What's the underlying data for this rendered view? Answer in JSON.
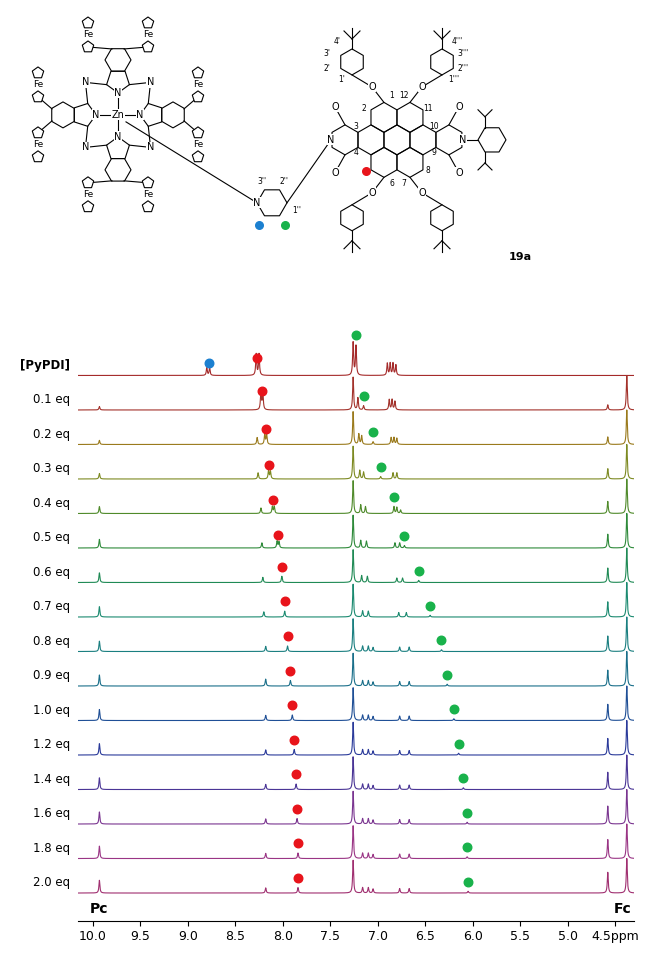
{
  "chart_data": {
    "type": "nmr_stack",
    "xlim": [
      10.15,
      4.3
    ],
    "ylim": [
      -0.8,
      17.5
    ],
    "xticks": [
      10.0,
      9.5,
      9.0,
      8.5,
      8.0,
      7.5,
      7.0,
      6.5,
      6.0,
      5.5,
      5.0,
      {
        "value": 4.5,
        "label": "4.5ppm"
      }
    ],
    "tick_labels": "x",
    "annotations": [
      {
        "text": "Pc",
        "x": 9.93
      },
      {
        "text": "Fc",
        "x": 4.42
      }
    ],
    "series": [
      {
        "name": "[PyPDI]",
        "color": "#a52a2a",
        "peaks": [
          [
            8.8,
            0.22
          ],
          [
            8.77,
            0.22
          ],
          [
            8.28,
            0.62
          ],
          [
            8.25,
            0.62
          ],
          [
            7.26,
            0.95
          ],
          [
            7.23,
            0.85
          ],
          [
            6.9,
            0.35
          ],
          [
            6.87,
            0.35
          ],
          [
            6.84,
            0.35
          ],
          [
            6.81,
            0.3
          ]
        ],
        "markers": [
          {
            "ppm": 8.27,
            "color": "#e8141b"
          },
          {
            "ppm": 7.23,
            "color": "#19b24b"
          },
          {
            "ppm": 8.78,
            "color": "#1c80d0"
          }
        ]
      },
      {
        "name": "0.1 eq",
        "color": "#a3322b",
        "peaks": [
          [
            9.93,
            0.1
          ],
          [
            8.23,
            0.55
          ],
          [
            8.21,
            0.5
          ],
          [
            7.26,
            0.95
          ],
          [
            7.21,
            0.35
          ],
          [
            7.15,
            0.12
          ],
          [
            6.88,
            0.3
          ],
          [
            6.85,
            0.3
          ],
          [
            6.82,
            0.25
          ],
          [
            4.58,
            0.15
          ],
          [
            4.38,
            1.0
          ]
        ],
        "markers": [
          {
            "ppm": 8.22,
            "color": "#e8141b"
          },
          {
            "ppm": 7.15,
            "color": "#19b24b"
          }
        ]
      },
      {
        "name": "0.2 eq",
        "color": "#9a7a1c",
        "peaks": [
          [
            9.93,
            0.12
          ],
          [
            8.27,
            0.2
          ],
          [
            8.19,
            0.3
          ],
          [
            8.17,
            0.28
          ],
          [
            7.26,
            0.95
          ],
          [
            7.2,
            0.3
          ],
          [
            7.17,
            0.25
          ],
          [
            7.05,
            0.08
          ],
          [
            6.86,
            0.2
          ],
          [
            6.83,
            0.2
          ],
          [
            6.8,
            0.18
          ],
          [
            4.58,
            0.22
          ],
          [
            4.38,
            1.0
          ]
        ],
        "markers": [
          {
            "ppm": 8.18,
            "color": "#e8141b"
          },
          {
            "ppm": 7.05,
            "color": "#19b24b"
          }
        ]
      },
      {
        "name": "0.3 eq",
        "color": "#7d8a22",
        "peaks": [
          [
            9.93,
            0.16
          ],
          [
            8.26,
            0.18
          ],
          [
            8.15,
            0.24
          ],
          [
            8.13,
            0.22
          ],
          [
            7.26,
            0.95
          ],
          [
            7.19,
            0.25
          ],
          [
            7.15,
            0.2
          ],
          [
            6.97,
            0.07
          ],
          [
            6.84,
            0.18
          ],
          [
            6.8,
            0.18
          ],
          [
            4.58,
            0.3
          ],
          [
            4.38,
            1.0
          ]
        ],
        "markers": [
          {
            "ppm": 8.14,
            "color": "#e8141b"
          },
          {
            "ppm": 6.97,
            "color": "#19b24b"
          }
        ]
      },
      {
        "name": "0.4 eq",
        "color": "#4f8a2a",
        "peaks": [
          [
            9.93,
            0.2
          ],
          [
            8.23,
            0.16
          ],
          [
            8.11,
            0.2
          ],
          [
            8.09,
            0.2
          ],
          [
            7.26,
            0.95
          ],
          [
            7.18,
            0.25
          ],
          [
            7.13,
            0.2
          ],
          [
            6.83,
            0.2
          ],
          [
            6.8,
            0.18
          ],
          [
            6.76,
            0.1
          ],
          [
            4.58,
            0.35
          ],
          [
            4.38,
            1.0
          ]
        ],
        "markers": [
          {
            "ppm": 8.1,
            "color": "#e8141b"
          },
          {
            "ppm": 6.83,
            "color": "#19b24b"
          }
        ]
      },
      {
        "name": "0.5 eq",
        "color": "#2e8a3a",
        "peaks": [
          [
            9.93,
            0.25
          ],
          [
            8.22,
            0.15
          ],
          [
            8.06,
            0.2
          ],
          [
            8.04,
            0.18
          ],
          [
            7.26,
            0.95
          ],
          [
            7.18,
            0.22
          ],
          [
            7.12,
            0.2
          ],
          [
            6.82,
            0.15
          ],
          [
            6.77,
            0.15
          ],
          [
            6.72,
            0.07
          ],
          [
            4.58,
            0.4
          ],
          [
            4.38,
            1.0
          ]
        ],
        "markers": [
          {
            "ppm": 8.05,
            "color": "#e8141b"
          },
          {
            "ppm": 6.72,
            "color": "#19b24b"
          }
        ]
      },
      {
        "name": "0.6 eq",
        "color": "#1f8a55",
        "peaks": [
          [
            9.93,
            0.28
          ],
          [
            8.21,
            0.15
          ],
          [
            8.01,
            0.18
          ],
          [
            7.26,
            0.95
          ],
          [
            7.17,
            0.2
          ],
          [
            7.11,
            0.18
          ],
          [
            6.8,
            0.13
          ],
          [
            6.74,
            0.13
          ],
          [
            6.57,
            0.06
          ],
          [
            4.58,
            0.42
          ],
          [
            4.38,
            1.0
          ]
        ],
        "markers": [
          {
            "ppm": 8.01,
            "color": "#e8141b"
          },
          {
            "ppm": 6.57,
            "color": "#19b24b"
          }
        ]
      },
      {
        "name": "0.7 eq",
        "color": "#1b8a70",
        "peaks": [
          [
            9.93,
            0.3
          ],
          [
            8.2,
            0.15
          ],
          [
            7.98,
            0.17
          ],
          [
            7.26,
            0.95
          ],
          [
            7.16,
            0.18
          ],
          [
            7.1,
            0.17
          ],
          [
            6.78,
            0.13
          ],
          [
            6.7,
            0.13
          ],
          [
            6.45,
            0.05
          ],
          [
            4.58,
            0.44
          ],
          [
            4.38,
            1.0
          ]
        ],
        "markers": [
          {
            "ppm": 7.98,
            "color": "#e8141b"
          },
          {
            "ppm": 6.45,
            "color": "#19b24b"
          }
        ]
      },
      {
        "name": "0.8 eq",
        "color": "#1a7f80",
        "peaks": [
          [
            9.93,
            0.3
          ],
          [
            8.18,
            0.15
          ],
          [
            7.95,
            0.16
          ],
          [
            7.26,
            0.95
          ],
          [
            7.16,
            0.16
          ],
          [
            7.1,
            0.16
          ],
          [
            7.05,
            0.12
          ],
          [
            6.77,
            0.13
          ],
          [
            6.67,
            0.13
          ],
          [
            6.33,
            0.05
          ],
          [
            4.58,
            0.45
          ],
          [
            4.38,
            1.0
          ]
        ],
        "markers": [
          {
            "ppm": 7.95,
            "color": "#e8141b"
          },
          {
            "ppm": 6.33,
            "color": "#19b24b"
          }
        ]
      },
      {
        "name": "0.9 eq",
        "color": "#1a6f8a",
        "peaks": [
          [
            9.93,
            0.32
          ],
          [
            8.18,
            0.2
          ],
          [
            7.92,
            0.16
          ],
          [
            7.26,
            0.95
          ],
          [
            7.16,
            0.16
          ],
          [
            7.1,
            0.16
          ],
          [
            7.05,
            0.12
          ],
          [
            6.77,
            0.13
          ],
          [
            6.67,
            0.13
          ],
          [
            6.27,
            0.05
          ],
          [
            4.58,
            0.46
          ],
          [
            4.38,
            1.0
          ]
        ],
        "markers": [
          {
            "ppm": 7.92,
            "color": "#e8141b"
          },
          {
            "ppm": 6.27,
            "color": "#19b24b"
          }
        ]
      },
      {
        "name": "1.0 eq",
        "color": "#1f4f96",
        "peaks": [
          [
            9.93,
            0.32
          ],
          [
            8.18,
            0.15
          ],
          [
            7.9,
            0.16
          ],
          [
            7.26,
            0.95
          ],
          [
            7.16,
            0.16
          ],
          [
            7.1,
            0.16
          ],
          [
            7.05,
            0.12
          ],
          [
            6.77,
            0.13
          ],
          [
            6.67,
            0.13
          ],
          [
            6.2,
            0.05
          ],
          [
            4.58,
            0.47
          ],
          [
            4.38,
            1.0
          ]
        ],
        "markers": [
          {
            "ppm": 7.9,
            "color": "#e8141b"
          },
          {
            "ppm": 6.2,
            "color": "#19b24b"
          }
        ]
      },
      {
        "name": "1.2 eq",
        "color": "#2a3a9a",
        "peaks": [
          [
            9.93,
            0.33
          ],
          [
            8.18,
            0.15
          ],
          [
            7.88,
            0.16
          ],
          [
            7.26,
            0.95
          ],
          [
            7.16,
            0.16
          ],
          [
            7.1,
            0.16
          ],
          [
            7.05,
            0.12
          ],
          [
            6.77,
            0.13
          ],
          [
            6.67,
            0.13
          ],
          [
            6.15,
            0.05
          ],
          [
            4.58,
            0.48
          ],
          [
            4.38,
            1.0
          ]
        ],
        "markers": [
          {
            "ppm": 7.88,
            "color": "#e8141b"
          },
          {
            "ppm": 6.15,
            "color": "#19b24b"
          }
        ]
      },
      {
        "name": "1.4 eq",
        "color": "#4a3596",
        "peaks": [
          [
            9.93,
            0.34
          ],
          [
            8.18,
            0.15
          ],
          [
            7.86,
            0.16
          ],
          [
            7.26,
            0.95
          ],
          [
            7.16,
            0.16
          ],
          [
            7.1,
            0.16
          ],
          [
            7.05,
            0.12
          ],
          [
            6.77,
            0.13
          ],
          [
            6.67,
            0.13
          ],
          [
            6.1,
            0.05
          ],
          [
            4.58,
            0.5
          ],
          [
            4.38,
            1.0
          ]
        ],
        "markers": [
          {
            "ppm": 7.86,
            "color": "#e8141b"
          },
          {
            "ppm": 6.1,
            "color": "#19b24b"
          }
        ]
      },
      {
        "name": "1.6 eq",
        "color": "#7a3590",
        "peaks": [
          [
            9.93,
            0.35
          ],
          [
            8.18,
            0.15
          ],
          [
            7.85,
            0.16
          ],
          [
            7.26,
            0.95
          ],
          [
            7.16,
            0.16
          ],
          [
            7.1,
            0.16
          ],
          [
            7.05,
            0.12
          ],
          [
            6.77,
            0.13
          ],
          [
            6.67,
            0.13
          ],
          [
            6.06,
            0.05
          ],
          [
            4.58,
            0.52
          ],
          [
            4.38,
            1.0
          ]
        ],
        "markers": [
          {
            "ppm": 7.85,
            "color": "#e8141b"
          },
          {
            "ppm": 6.06,
            "color": "#19b24b"
          }
        ]
      },
      {
        "name": "1.8 eq",
        "color": "#9a3585",
        "peaks": [
          [
            9.93,
            0.36
          ],
          [
            8.18,
            0.15
          ],
          [
            7.84,
            0.16
          ],
          [
            7.26,
            0.95
          ],
          [
            7.16,
            0.16
          ],
          [
            7.1,
            0.16
          ],
          [
            7.05,
            0.12
          ],
          [
            6.77,
            0.13
          ],
          [
            6.67,
            0.13
          ],
          [
            6.06,
            0.05
          ],
          [
            4.58,
            0.55
          ],
          [
            4.38,
            1.0
          ]
        ],
        "markers": [
          {
            "ppm": 7.84,
            "color": "#e8141b"
          },
          {
            "ppm": 6.06,
            "color": "#19b24b"
          }
        ]
      },
      {
        "name": "2.0 eq",
        "color": "#a02f70",
        "peaks": [
          [
            9.93,
            0.37
          ],
          [
            8.18,
            0.15
          ],
          [
            7.84,
            0.16
          ],
          [
            7.26,
            0.95
          ],
          [
            7.16,
            0.16
          ],
          [
            7.1,
            0.16
          ],
          [
            7.05,
            0.12
          ],
          [
            6.77,
            0.13
          ],
          [
            6.67,
            0.13
          ],
          [
            6.05,
            0.05
          ],
          [
            4.58,
            0.6
          ],
          [
            4.38,
            1.0
          ]
        ],
        "markers": [
          {
            "ppm": 7.84,
            "color": "#e8141b"
          },
          {
            "ppm": 6.05,
            "color": "#19b24b"
          }
        ]
      }
    ]
  },
  "structure": {
    "compound": "19a",
    "metal": "Zn",
    "iron": "Fe",
    "nitrogen": "N",
    "oxygen": "O",
    "numbering": [
      "1",
      "2",
      "3",
      "4",
      "6",
      "7",
      "8",
      "9",
      "10",
      "11",
      "12",
      "1'",
      "2'",
      "3'",
      "4'",
      "1''",
      "2''",
      "3''",
      "1'''",
      "2'''",
      "3'''",
      "4'''"
    ]
  }
}
